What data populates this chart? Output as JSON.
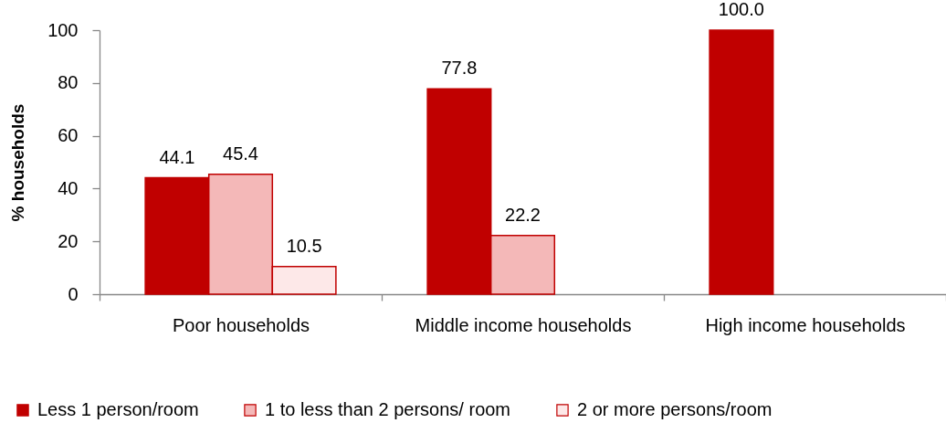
{
  "chart_data": {
    "type": "bar",
    "ylabel": "% households",
    "categories": [
      "Poor households",
      "Middle income households",
      "High income households"
    ],
    "series": [
      {
        "name": "Less 1 person/room",
        "color": "#c00000",
        "values": [
          44.1,
          77.8,
          100.0
        ],
        "value_labels": [
          "44.1",
          "77.8",
          "100.0"
        ]
      },
      {
        "name": "1 to less than 2 persons/ room",
        "color": "#f4b8b8",
        "values": [
          45.4,
          22.2,
          null
        ],
        "value_labels": [
          "45.4",
          "22.2",
          null
        ]
      },
      {
        "name": "2 or more persons/room",
        "color": "#fde8e8",
        "values": [
          10.5,
          null,
          null
        ],
        "value_labels": [
          "10.5",
          null,
          null
        ]
      }
    ],
    "ylim": [
      0,
      100
    ],
    "yticks": [
      0,
      20,
      40,
      60,
      80,
      100
    ],
    "legend": "bottom"
  }
}
